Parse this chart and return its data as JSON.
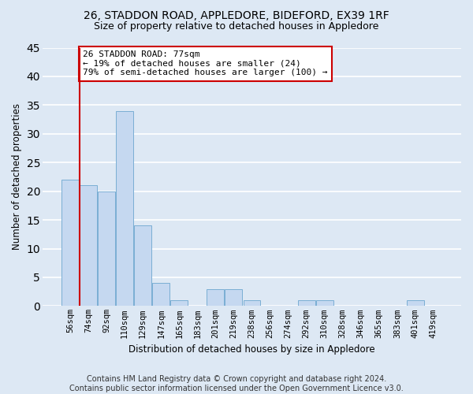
{
  "title1": "26, STADDON ROAD, APPLEDORE, BIDEFORD, EX39 1RF",
  "title2": "Size of property relative to detached houses in Appledore",
  "xlabel": "Distribution of detached houses by size in Appledore",
  "ylabel": "Number of detached properties",
  "categories": [
    "56sqm",
    "74sqm",
    "92sqm",
    "110sqm",
    "129sqm",
    "147sqm",
    "165sqm",
    "183sqm",
    "201sqm",
    "219sqm",
    "238sqm",
    "256sqm",
    "274sqm",
    "292sqm",
    "310sqm",
    "328sqm",
    "346sqm",
    "365sqm",
    "383sqm",
    "401sqm",
    "419sqm"
  ],
  "values": [
    22,
    21,
    20,
    34,
    14,
    4,
    1,
    0,
    3,
    3,
    1,
    0,
    0,
    1,
    1,
    0,
    0,
    0,
    0,
    1,
    0
  ],
  "bar_color": "#c5d8f0",
  "bar_edge_color": "#7aaed4",
  "vline_x": 1,
  "vline_color": "#cc0000",
  "annotation_text": "26 STADDON ROAD: 77sqm\n← 19% of detached houses are smaller (24)\n79% of semi-detached houses are larger (100) →",
  "annotation_box_color": "#ffffff",
  "annotation_box_edge_color": "#cc0000",
  "ylim": [
    0,
    45
  ],
  "yticks": [
    0,
    5,
    10,
    15,
    20,
    25,
    30,
    35,
    40,
    45
  ],
  "footnote": "Contains HM Land Registry data © Crown copyright and database right 2024.\nContains public sector information licensed under the Open Government Licence v3.0.",
  "bg_color": "#dde8f4",
  "plot_bg_color": "#dde8f4",
  "grid_color": "#ffffff",
  "title1_fontsize": 10,
  "title2_fontsize": 9,
  "xlabel_fontsize": 8.5,
  "ylabel_fontsize": 8.5,
  "tick_fontsize": 7.5,
  "footnote_fontsize": 7,
  "annot_fontsize": 8
}
